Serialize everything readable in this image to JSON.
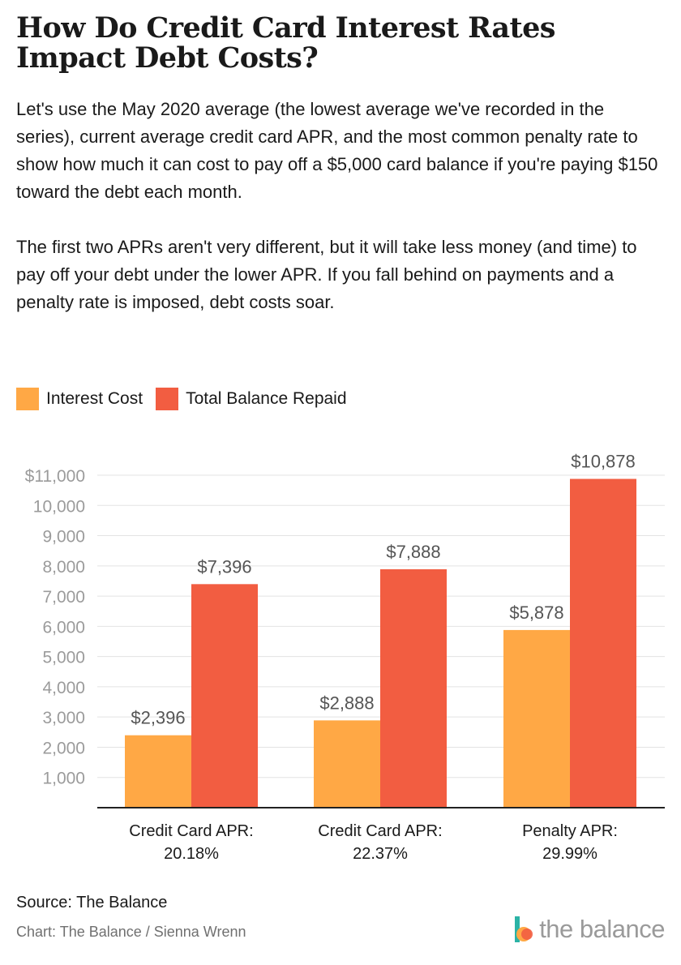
{
  "title": "How Do Credit Card Interest Rates Impact Debt Costs?",
  "description": {
    "paragraph1": "Let's use the May 2020 average (the lowest average we've recorded in the series), current average credit card APR, and the most common penalty rate to show how much it can cost to pay off a $5,000 card balance if you're paying $150 toward the debt each month.",
    "paragraph2": "The first two APRs aren't very different, but it will take less money (and time) to pay off your debt under the lower APR. If you fall behind on payments and a penalty rate is imposed, debt costs soar."
  },
  "legend": [
    {
      "label": "Interest Cost",
      "color": "#FFA845"
    },
    {
      "label": "Total Balance Repaid",
      "color": "#F25D41"
    }
  ],
  "chart_data": {
    "type": "bar",
    "categories": [
      [
        "Credit Card APR:",
        "20.18%"
      ],
      [
        "Credit Card APR:",
        "22.37%"
      ],
      [
        "Penalty APR:",
        "29.99%"
      ]
    ],
    "series": [
      {
        "name": "Interest Cost",
        "values": [
          2396,
          2888,
          5878
        ],
        "labels": [
          "$2,396",
          "$2,888",
          "$5,878"
        ],
        "color": "#FFA845"
      },
      {
        "name": "Total Balance Repaid",
        "values": [
          7396,
          7888,
          10878
        ],
        "labels": [
          "$7,396",
          "$7,888",
          "$10,878"
        ],
        "color": "#F25D41"
      }
    ],
    "yticks": [
      {
        "value": 1000,
        "label": "1,000"
      },
      {
        "value": 2000,
        "label": "2,000"
      },
      {
        "value": 3000,
        "label": "3,000"
      },
      {
        "value": 4000,
        "label": "4,000"
      },
      {
        "value": 5000,
        "label": "5,000"
      },
      {
        "value": 6000,
        "label": "6,000"
      },
      {
        "value": 7000,
        "label": "7,000"
      },
      {
        "value": 8000,
        "label": "8,000"
      },
      {
        "value": 9000,
        "label": "9,000"
      },
      {
        "value": 10000,
        "label": "10,000"
      },
      {
        "value": 11000,
        "label": "$11,000"
      }
    ],
    "ylim": [
      0,
      11000
    ],
    "grid": true,
    "legend_position": "top-left"
  },
  "source": "Source: The Balance",
  "credit": "Chart: The Balance / Sienna Wrenn",
  "logo": {
    "text": "the balance",
    "colors": [
      "#2BB3A6",
      "#FFA845",
      "#F25D41"
    ]
  }
}
